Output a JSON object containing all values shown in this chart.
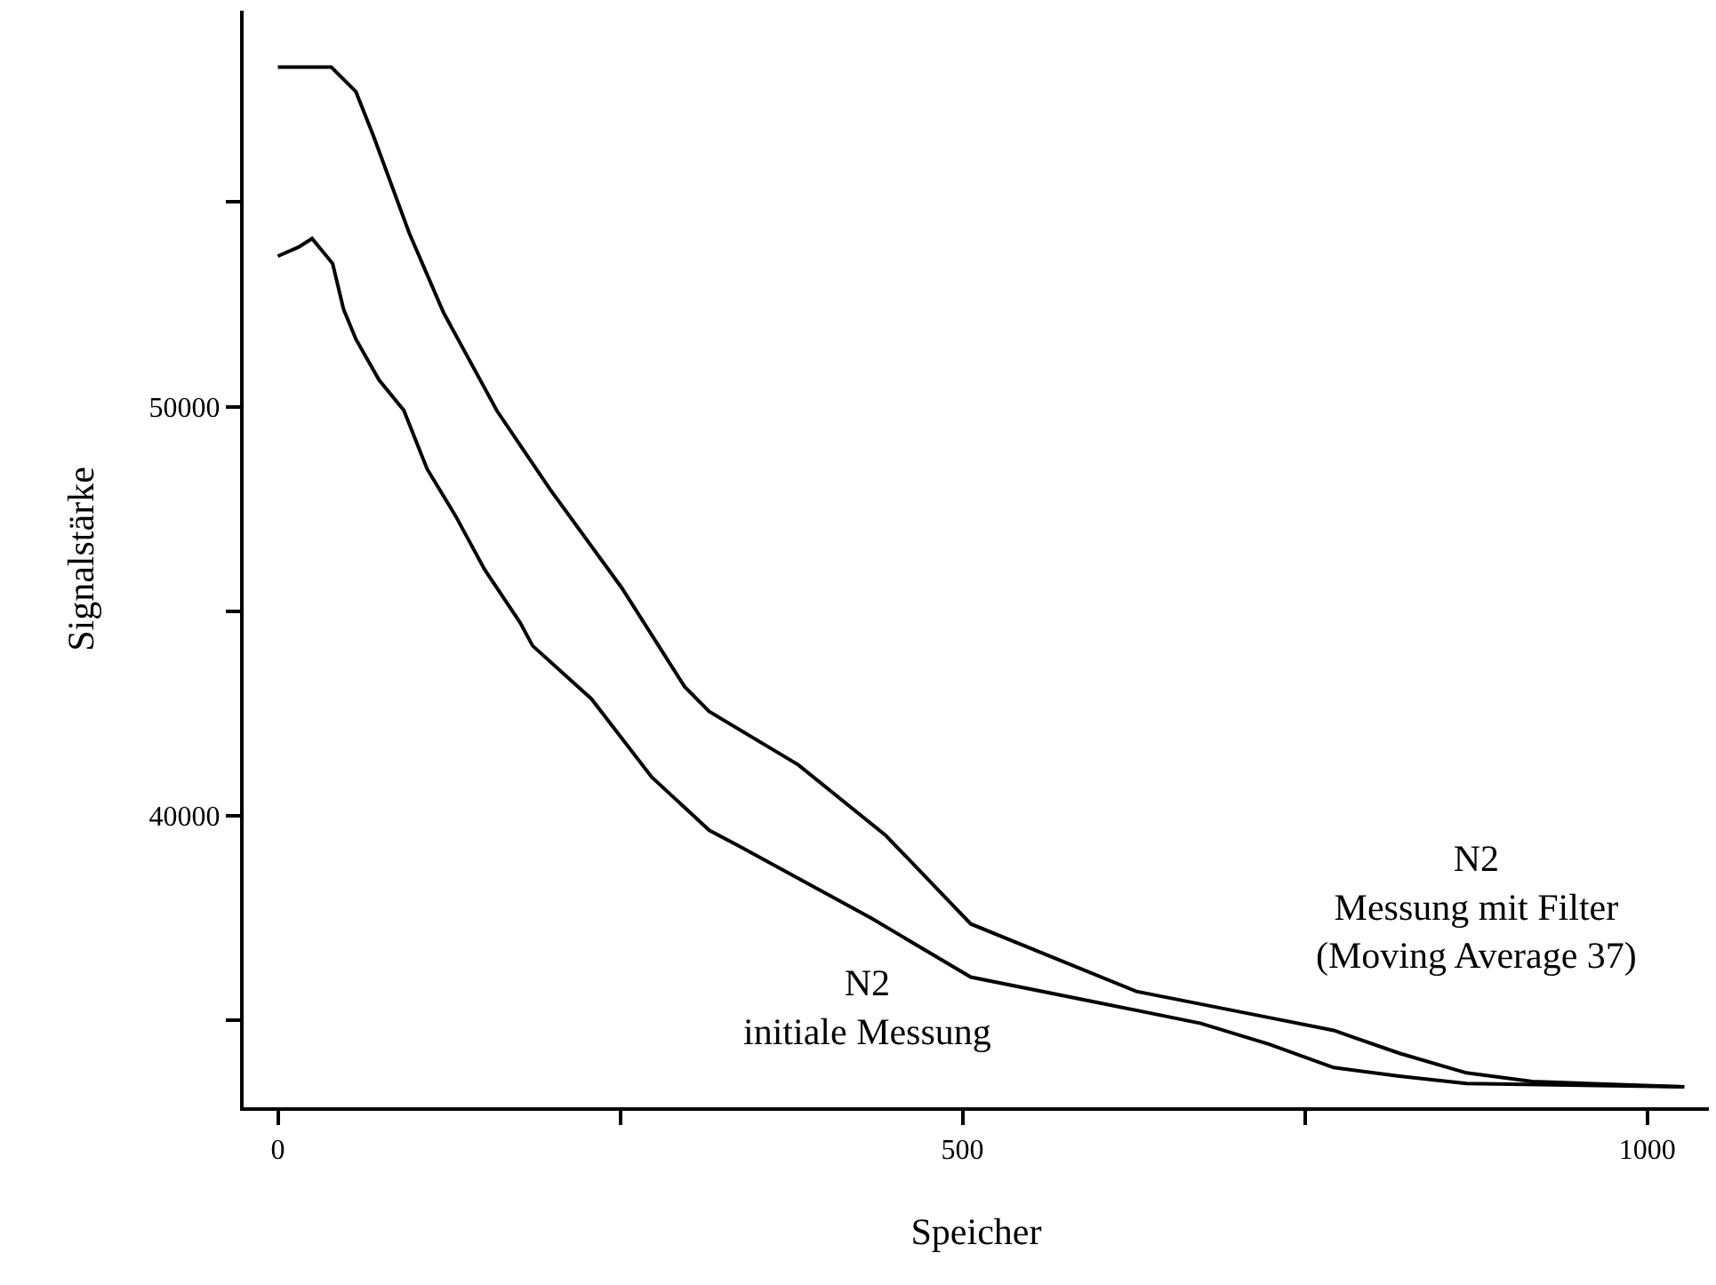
{
  "chart_data": {
    "type": "line",
    "xlabel": "Speicher",
    "ylabel": "Signalstärke",
    "xlim": [
      -25,
      1045
    ],
    "ylim": [
      32880,
      59680
    ],
    "xticks": [
      0,
      {
        "value": 250,
        "label": null
      },
      500,
      {
        "value": 750,
        "label": null
      },
      1000
    ],
    "yticks": [
      {
        "value": 35000,
        "label": null
      },
      40000,
      {
        "value": 45000,
        "label": null
      },
      50000,
      {
        "value": 55000,
        "label": null
      }
    ],
    "marker": "none",
    "line_style": "solid",
    "series": [
      {
        "color": "#000000",
        "x": [
          0,
          15,
          25,
          40,
          48,
          57,
          74,
          92,
          109,
          130,
          151,
          177,
          186,
          229,
          273,
          315,
          337,
          434,
          506,
          603,
          674,
          724,
          771,
          819,
          868,
          1027
        ],
        "values": [
          53680,
          53900,
          54110,
          53500,
          52380,
          51650,
          50650,
          49910,
          48480,
          47320,
          46020,
          44720,
          44160,
          42860,
          40950,
          39650,
          39260,
          37490,
          36060,
          35410,
          34930,
          34420,
          33850,
          33640,
          33460,
          33380
        ]
      },
      {
        "color": "#000000",
        "x": [
          0,
          39,
          57,
          70,
          96,
          121,
          160,
          199,
          251,
          297,
          315,
          380,
          444,
          506,
          627,
          724,
          771,
          819,
          868,
          916,
          1027
        ],
        "values": [
          58300,
          58300,
          57700,
          56600,
          54240,
          52300,
          49900,
          47970,
          45580,
          43160,
          42550,
          41250,
          39520,
          37360,
          35710,
          35070,
          34760,
          34200,
          33720,
          33510,
          33380
        ]
      }
    ],
    "annotations": [
      "N2\ninitiale Messung",
      "N2\nMessung mit Filter\n(Moving Average 37)"
    ]
  }
}
